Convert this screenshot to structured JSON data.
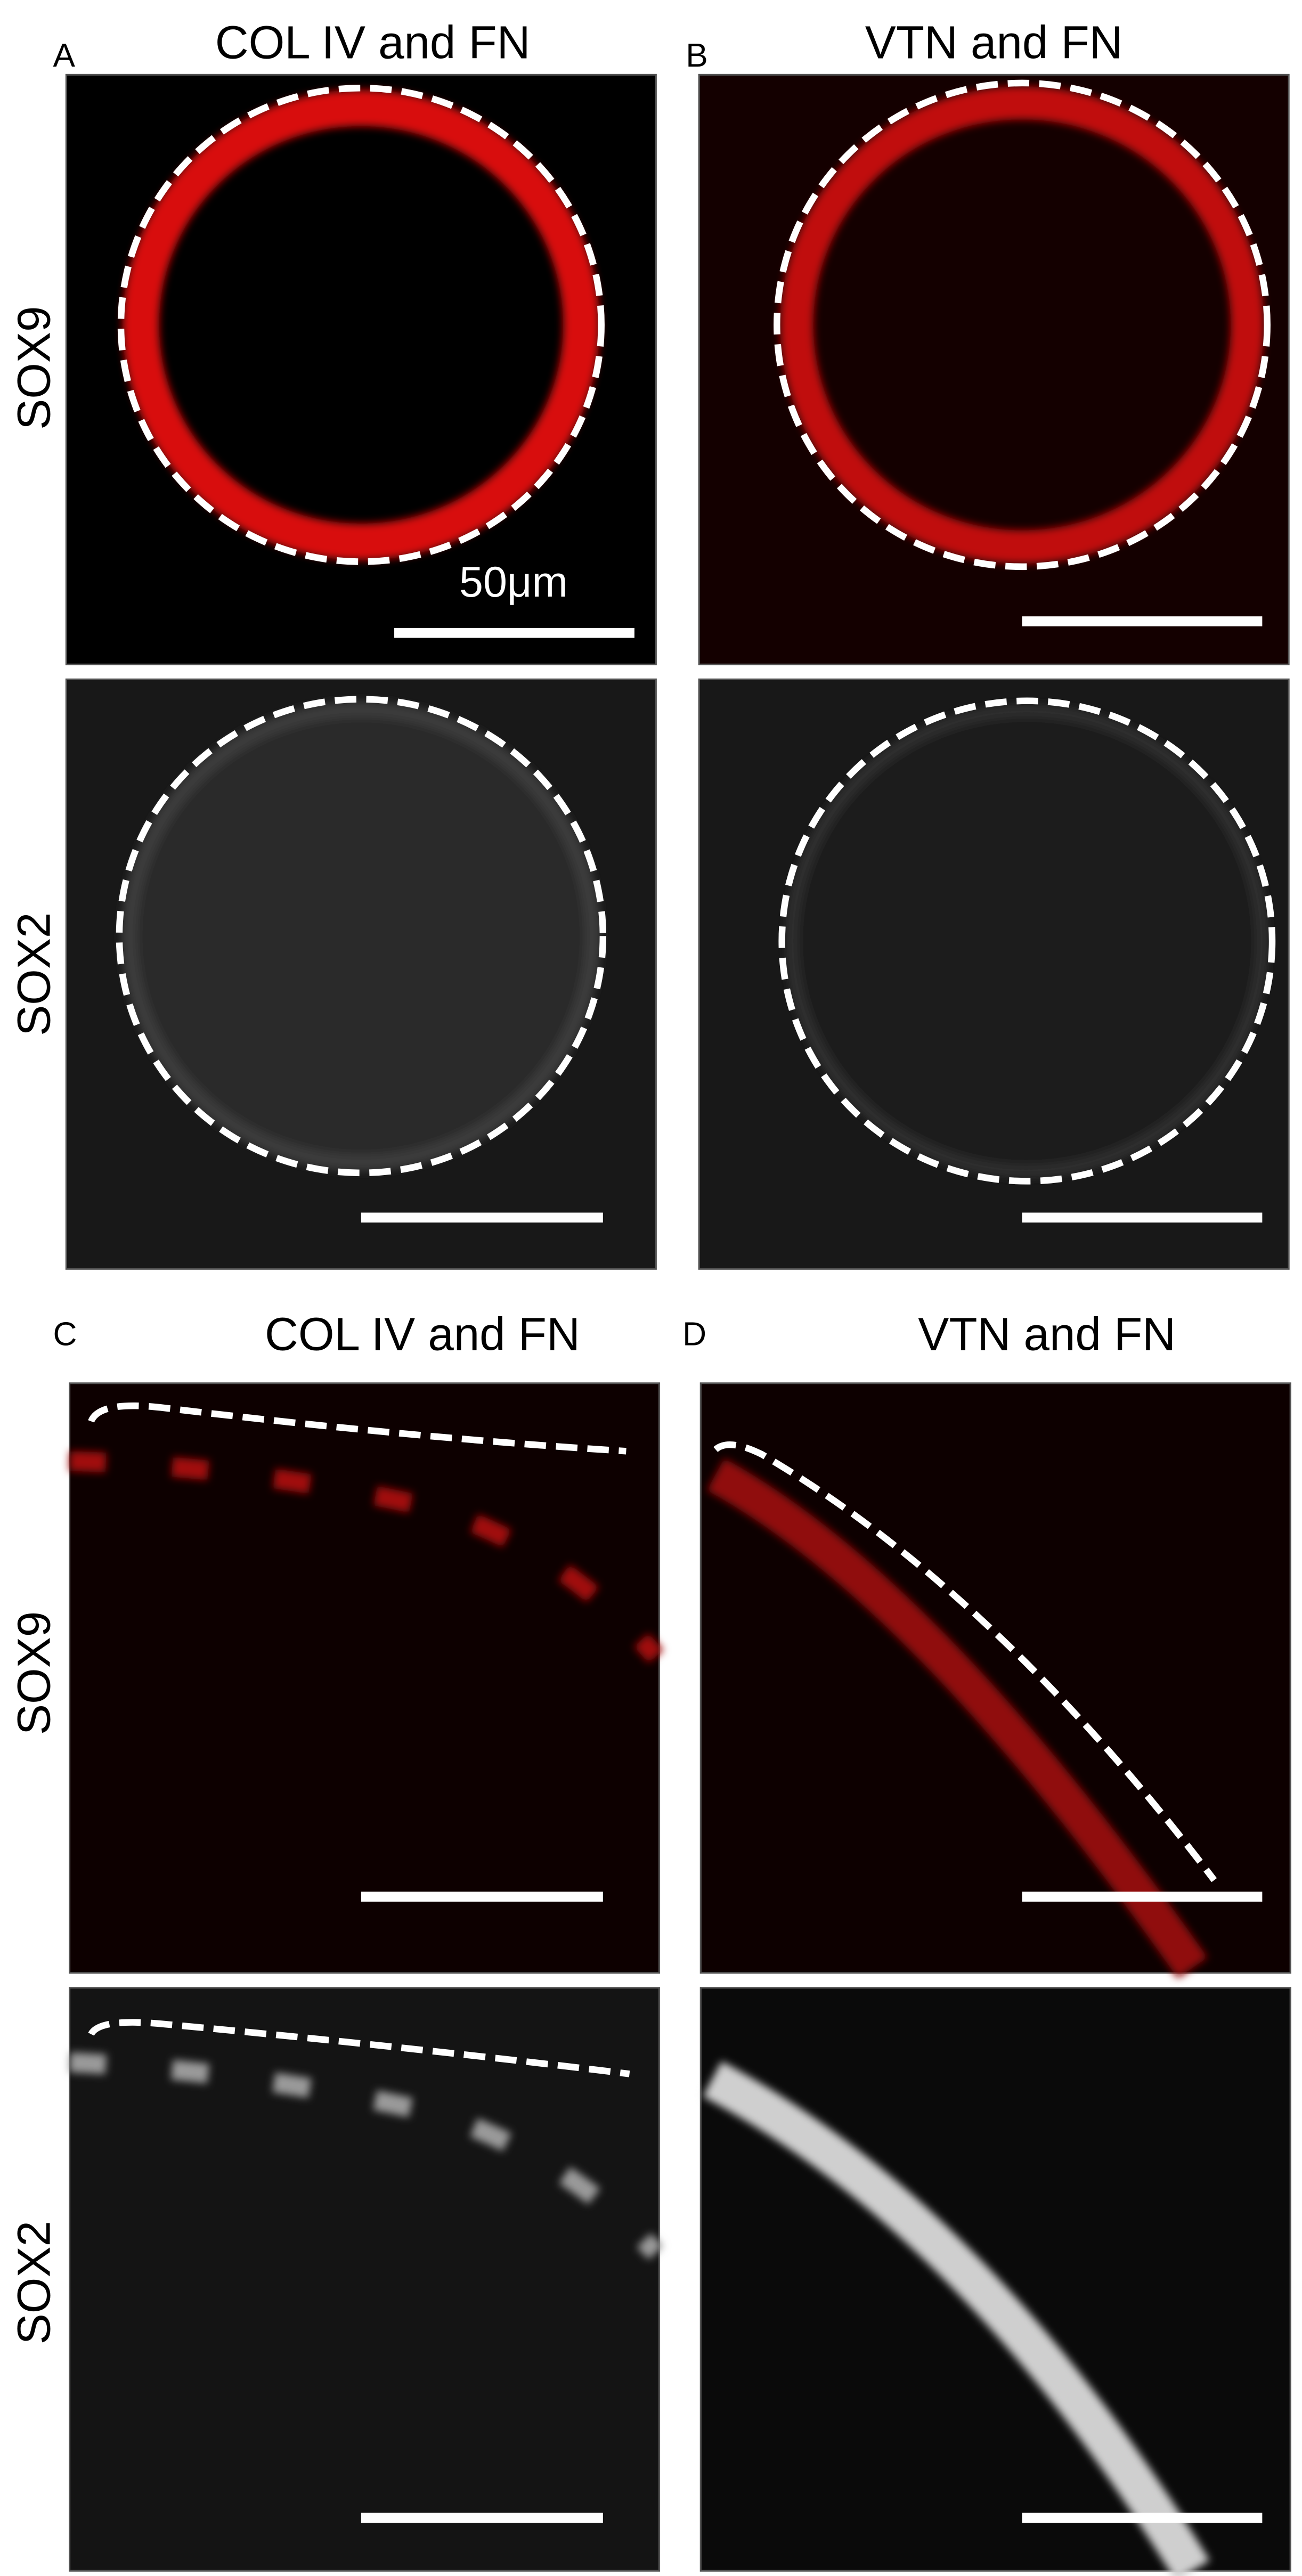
{
  "sections": [
    {
      "panels": [
        {
          "letter": "A",
          "title": "COL IV and FN"
        },
        {
          "letter": "B",
          "title": "VTN and FN"
        }
      ],
      "row_labels": [
        "SOX9",
        "SOX2"
      ]
    },
    {
      "panels": [
        {
          "letter": "C",
          "title": "COL IV and FN"
        },
        {
          "letter": "D",
          "title": "VTN and FN"
        }
      ],
      "row_labels": [
        "SOX9",
        "SOX2"
      ]
    }
  ],
  "scale_bar_label": "50μm"
}
